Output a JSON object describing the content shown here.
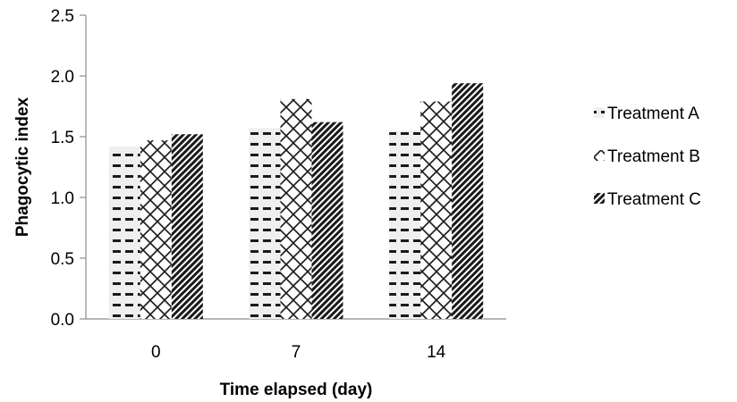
{
  "chart_data": {
    "type": "bar",
    "title": "",
    "xlabel": "Time elapsed (day)",
    "ylabel": "Phagocytic index",
    "categories": [
      "0",
      "7",
      "14"
    ],
    "ylim": [
      0,
      2.5
    ],
    "yticks": [
      "0.0",
      "0.5",
      "1.0",
      "1.5",
      "2.0",
      "2.5"
    ],
    "grid": false,
    "legend_position": "right",
    "series": [
      {
        "name": "Treatment A",
        "pattern": "dashes",
        "values": [
          1.42,
          1.57,
          1.55
        ]
      },
      {
        "name": "Treatment B",
        "pattern": "diamond-lattice",
        "values": [
          1.47,
          1.81,
          1.79
        ]
      },
      {
        "name": "Treatment C",
        "pattern": "dense-diagonal",
        "values": [
          1.52,
          1.62,
          1.94
        ]
      }
    ]
  }
}
